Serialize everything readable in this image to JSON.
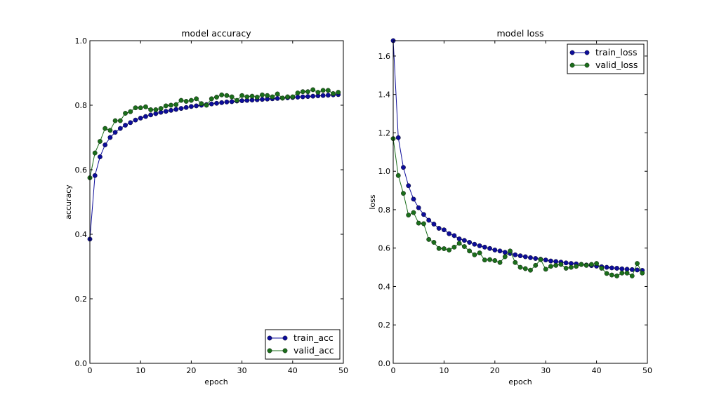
{
  "colors": {
    "train": "#0d0d9a",
    "valid": "#1b6e1b",
    "background": "#ffffff",
    "axes": "#000000"
  },
  "chart_data": [
    {
      "type": "line",
      "title": "model accuracy",
      "xlabel": "epoch",
      "ylabel": "accuracy",
      "xlim": [
        0,
        50
      ],
      "ylim": [
        0.0,
        1.0
      ],
      "xticks": [
        0,
        10,
        20,
        30,
        40,
        50
      ],
      "yticks": [
        0.0,
        0.2,
        0.4,
        0.6,
        0.8,
        1.0
      ],
      "xtick_labels": [
        "0",
        "10",
        "20",
        "30",
        "40",
        "50"
      ],
      "ytick_labels": [
        "0.0",
        "0.2",
        "0.4",
        "0.6",
        "0.8",
        "1.0"
      ],
      "grid": false,
      "legend_position": "lower-right",
      "marker": "circle",
      "series": [
        {
          "name": "train_acc",
          "color": "#0d0d9a",
          "values": [
            0.385,
            0.582,
            0.64,
            0.677,
            0.7,
            0.716,
            0.728,
            0.738,
            0.746,
            0.754,
            0.76,
            0.765,
            0.77,
            0.774,
            0.778,
            0.781,
            0.784,
            0.787,
            0.79,
            0.793,
            0.796,
            0.798,
            0.8,
            0.802,
            0.804,
            0.806,
            0.808,
            0.81,
            0.811,
            0.813,
            0.814,
            0.815,
            0.816,
            0.817,
            0.818,
            0.819,
            0.82,
            0.821,
            0.822,
            0.823,
            0.824,
            0.825,
            0.826,
            0.827,
            0.828,
            0.829,
            0.83,
            0.831,
            0.832,
            0.833
          ]
        },
        {
          "name": "valid_acc",
          "color": "#1b6e1b",
          "values": [
            0.575,
            0.652,
            0.688,
            0.728,
            0.722,
            0.752,
            0.752,
            0.775,
            0.78,
            0.792,
            0.792,
            0.795,
            0.786,
            0.786,
            0.79,
            0.798,
            0.8,
            0.802,
            0.815,
            0.812,
            0.815,
            0.82,
            0.805,
            0.8,
            0.82,
            0.825,
            0.832,
            0.83,
            0.826,
            0.815,
            0.83,
            0.826,
            0.828,
            0.825,
            0.832,
            0.83,
            0.826,
            0.835,
            0.822,
            0.826,
            0.826,
            0.838,
            0.842,
            0.842,
            0.848,
            0.84,
            0.846,
            0.846,
            0.836,
            0.84
          ]
        }
      ]
    },
    {
      "type": "line",
      "title": "model loss",
      "xlabel": "epoch",
      "ylabel": "loss",
      "xlim": [
        0,
        50
      ],
      "ylim": [
        0.0,
        1.68
      ],
      "xticks": [
        0,
        10,
        20,
        30,
        40,
        50
      ],
      "yticks": [
        0.0,
        0.2,
        0.4,
        0.6,
        0.8,
        1.0,
        1.2,
        1.4,
        1.6
      ],
      "xtick_labels": [
        "0",
        "10",
        "20",
        "30",
        "40",
        "50"
      ],
      "ytick_labels": [
        "0.0",
        "0.2",
        "0.4",
        "0.6",
        "0.8",
        "1.0",
        "1.2",
        "1.4",
        "1.6"
      ],
      "grid": false,
      "legend_position": "upper-right",
      "marker": "circle",
      "series": [
        {
          "name": "train_loss",
          "color": "#0d0d9a",
          "values": [
            1.68,
            1.175,
            1.02,
            0.925,
            0.855,
            0.81,
            0.775,
            0.745,
            0.725,
            0.703,
            0.695,
            0.675,
            0.665,
            0.648,
            0.64,
            0.63,
            0.62,
            0.612,
            0.605,
            0.598,
            0.59,
            0.585,
            0.578,
            0.572,
            0.565,
            0.56,
            0.555,
            0.55,
            0.546,
            0.542,
            0.538,
            0.533,
            0.53,
            0.527,
            0.523,
            0.52,
            0.518,
            0.515,
            0.512,
            0.509,
            0.506,
            0.503,
            0.5,
            0.497,
            0.495,
            0.492,
            0.49,
            0.488,
            0.486,
            0.484
          ]
        },
        {
          "name": "valid_loss",
          "color": "#1b6e1b",
          "values": [
            1.17,
            0.978,
            0.885,
            0.772,
            0.785,
            0.73,
            0.727,
            0.645,
            0.63,
            0.598,
            0.597,
            0.59,
            0.605,
            0.625,
            0.608,
            0.585,
            0.565,
            0.575,
            0.538,
            0.54,
            0.535,
            0.525,
            0.555,
            0.585,
            0.525,
            0.5,
            0.493,
            0.485,
            0.51,
            0.54,
            0.49,
            0.505,
            0.51,
            0.515,
            0.495,
            0.5,
            0.505,
            0.515,
            0.51,
            0.515,
            0.52,
            0.495,
            0.468,
            0.46,
            0.455,
            0.47,
            0.47,
            0.455,
            0.52,
            0.47
          ]
        }
      ]
    }
  ]
}
